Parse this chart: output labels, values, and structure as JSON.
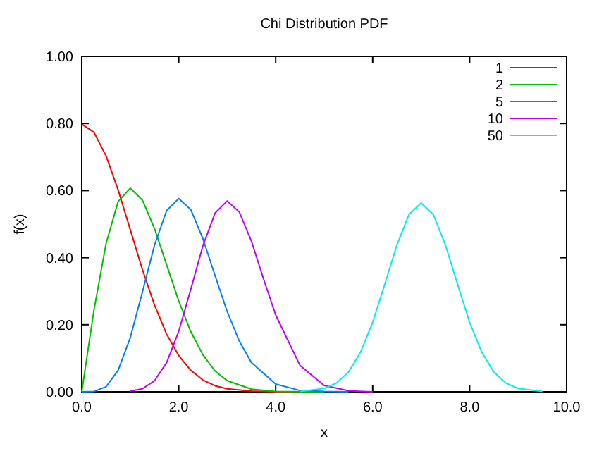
{
  "chart_data": {
    "type": "line",
    "title": "Chi Distribution PDF",
    "xlabel": "x",
    "ylabel": "f(x)",
    "xlim": [
      0,
      10
    ],
    "ylim": [
      0,
      1
    ],
    "xticks": [
      {
        "value": 0,
        "label": "0.0"
      },
      {
        "value": 2,
        "label": "2.0"
      },
      {
        "value": 4,
        "label": "4.0"
      },
      {
        "value": 6,
        "label": "6.0"
      },
      {
        "value": 8,
        "label": "8.0"
      },
      {
        "value": 10,
        "label": "10.0"
      }
    ],
    "yticks": [
      {
        "value": 0,
        "label": "0.00"
      },
      {
        "value": 0.2,
        "label": "0.20"
      },
      {
        "value": 0.4,
        "label": "0.40"
      },
      {
        "value": 0.6,
        "label": "0.60"
      },
      {
        "value": 0.8,
        "label": "0.80"
      },
      {
        "value": 1,
        "label": "1.00"
      }
    ],
    "grid": false,
    "legend": "top right",
    "marker": "none",
    "line_style": "solid",
    "series": [
      {
        "name": "1",
        "color": "#ff0000",
        "x": [
          0,
          0.25,
          0.5,
          0.75,
          1,
          1.25,
          1.5,
          1.75,
          2,
          2.25,
          2.5,
          2.75,
          3,
          3.5,
          4,
          5
        ],
        "values": [
          0.798,
          0.774,
          0.704,
          0.602,
          0.484,
          0.365,
          0.259,
          0.172,
          0.108,
          0.064,
          0.035,
          0.018,
          0.009,
          0.002,
          0,
          0
        ]
      },
      {
        "name": "2",
        "color": "#00c000",
        "x": [
          0,
          0.25,
          0.5,
          0.75,
          1,
          1.25,
          1.5,
          1.75,
          2,
          2.25,
          2.5,
          2.75,
          3,
          3.5,
          4,
          5
        ],
        "values": [
          0,
          0.242,
          0.441,
          0.567,
          0.607,
          0.572,
          0.487,
          0.379,
          0.271,
          0.179,
          0.11,
          0.062,
          0.033,
          0.008,
          0.001,
          0
        ]
      },
      {
        "name": "5",
        "color": "#0080ff",
        "x": [
          0,
          0.25,
          0.5,
          0.75,
          1,
          1.25,
          1.5,
          1.75,
          2,
          2.25,
          2.5,
          2.75,
          3,
          3.25,
          3.5,
          4,
          4.5,
          5,
          5.5
        ],
        "values": [
          0,
          0.001,
          0.015,
          0.064,
          0.161,
          0.297,
          0.437,
          0.54,
          0.576,
          0.543,
          0.456,
          0.346,
          0.239,
          0.151,
          0.087,
          0.023,
          0.004,
          0.001,
          0
        ]
      },
      {
        "name": "10",
        "color": "#c000ff",
        "x": [
          1,
          1.25,
          1.5,
          1.75,
          2,
          2.25,
          2.5,
          2.75,
          3,
          3.25,
          3.5,
          3.75,
          4,
          4.5,
          5,
          5.5,
          6
        ],
        "values": [
          0.002,
          0.009,
          0.033,
          0.087,
          0.18,
          0.306,
          0.436,
          0.533,
          0.569,
          0.536,
          0.449,
          0.336,
          0.229,
          0.079,
          0.019,
          0.003,
          0
        ]
      },
      {
        "name": "50",
        "color": "#00eeee",
        "x": [
          4.5,
          5,
          5.25,
          5.5,
          5.75,
          6,
          6.25,
          6.5,
          6.75,
          7,
          7.25,
          7.5,
          7.75,
          8,
          8.25,
          8.5,
          8.75,
          9,
          9.5
        ],
        "values": [
          0.001,
          0.01,
          0.026,
          0.059,
          0.118,
          0.207,
          0.321,
          0.438,
          0.529,
          0.563,
          0.529,
          0.438,
          0.321,
          0.207,
          0.118,
          0.059,
          0.026,
          0.01,
          0.001
        ]
      }
    ]
  }
}
